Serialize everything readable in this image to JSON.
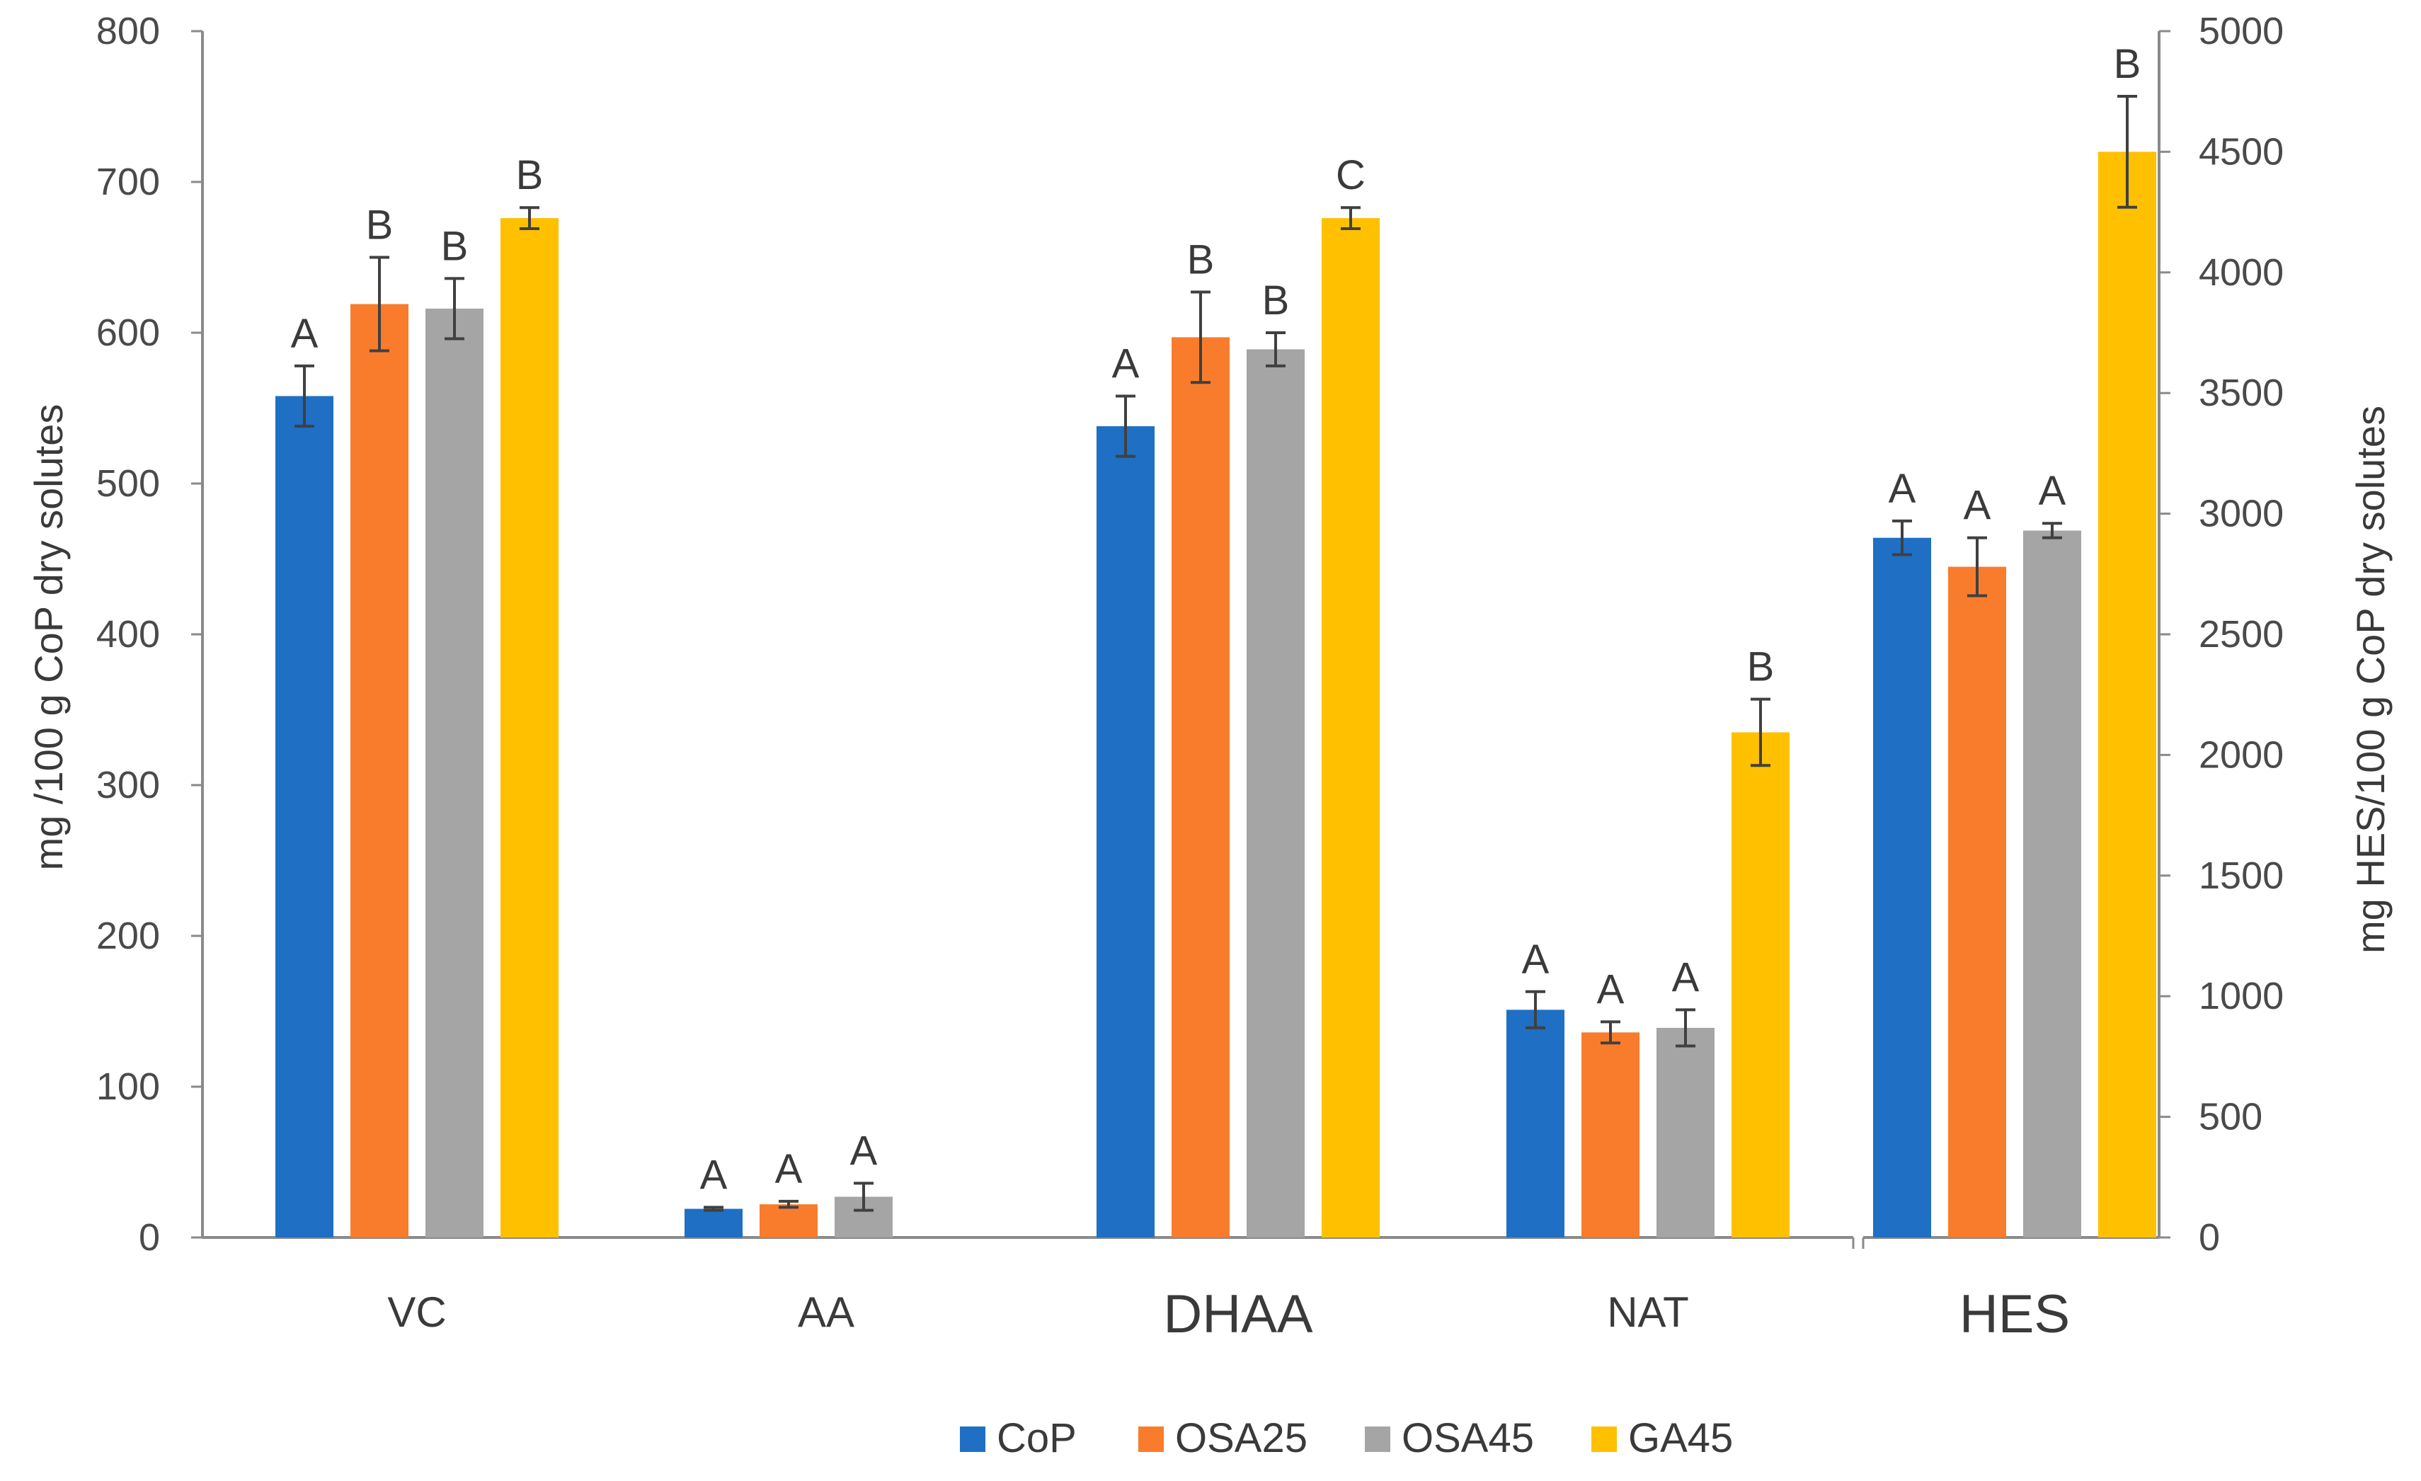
{
  "chart_data": {
    "type": "bar",
    "title": "",
    "categories": [
      "VC",
      "AA",
      "DHAA",
      "NAT",
      "HES"
    ],
    "series": [
      {
        "name": "CoP",
        "color": "#1f6fc4",
        "values": [
          558,
          19,
          538,
          151,
          2900
        ],
        "errors": [
          20,
          1,
          20,
          12,
          70
        ],
        "letters": [
          "A",
          "A",
          "A",
          "A",
          "A"
        ]
      },
      {
        "name": "OSA25",
        "color": "#f97c2d",
        "values": [
          619,
          22,
          597,
          136,
          2780
        ],
        "errors": [
          31,
          2,
          30,
          7,
          120
        ],
        "letters": [
          "B",
          "A",
          "B",
          "A",
          "A"
        ]
      },
      {
        "name": "OSA45",
        "color": "#a5a5a5",
        "values": [
          616,
          27,
          589,
          139,
          2930
        ],
        "errors": [
          20,
          9,
          11,
          12,
          30
        ],
        "letters": [
          "B",
          "A",
          "B",
          "A",
          "A"
        ]
      },
      {
        "name": "GA45",
        "color": "#ffc000",
        "values": [
          676,
          null,
          676,
          335,
          4500
        ],
        "errors": [
          7,
          null,
          7,
          22,
          230
        ],
        "letters": [
          "B",
          "",
          "C",
          "B",
          "B"
        ]
      }
    ],
    "axes": {
      "y_left": {
        "label": "mg /100 g CoP dry solutes",
        "min": 0,
        "max": 800,
        "step": 100,
        "ticks": [
          "0",
          "100",
          "200",
          "300",
          "400",
          "500",
          "600",
          "700",
          "800"
        ]
      },
      "y_right": {
        "label": "mg HES/100 g CoP dry solutes",
        "min": 0,
        "max": 5000,
        "step": 500,
        "ticks": [
          "0",
          "500",
          "1000",
          "1500",
          "2000",
          "2500",
          "3000",
          "3500",
          "4000",
          "4500",
          "5000"
        ]
      }
    },
    "secondary_axis_categories": [
      "HES"
    ],
    "grid": false,
    "legend_position": "bottom"
  }
}
